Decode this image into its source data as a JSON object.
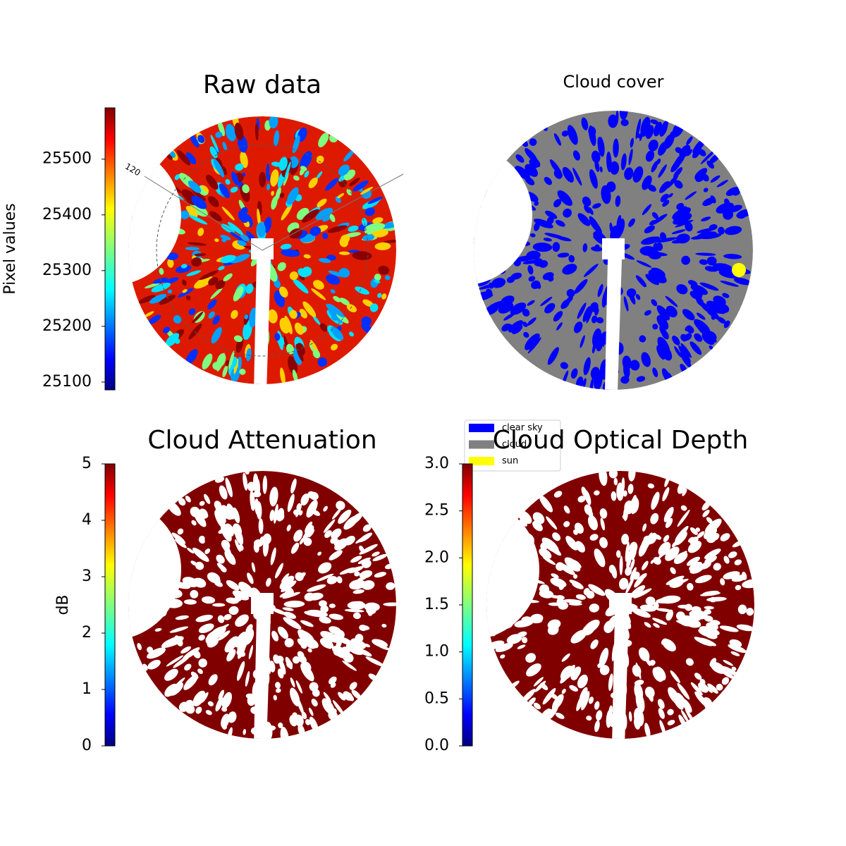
{
  "chart_data": [
    {
      "type": "image",
      "title": "Raw data",
      "ylabel": "Pixel values",
      "colormap": "jet",
      "ylim": [
        25086,
        25592
      ],
      "yticks": [
        25100,
        25200,
        25300,
        25400,
        25500
      ],
      "annotation": "120"
    },
    {
      "type": "image",
      "title": "Cloud cover",
      "legend": [
        {
          "name": "clear sky",
          "color": "#0000ff"
        },
        {
          "name": "cloud",
          "color": "#808080"
        },
        {
          "name": "sun",
          "color": "#ffff00"
        }
      ]
    },
    {
      "type": "image",
      "title": "Cloud Attenuation",
      "ylabel": "dB",
      "colormap": "jet",
      "ylim": [
        0,
        5
      ],
      "yticks": [
        0,
        1,
        2,
        3,
        4,
        5
      ]
    },
    {
      "type": "image",
      "title": "Cloud Optical Depth",
      "colormap": "jet",
      "ylim": [
        0,
        3
      ],
      "yticks": [
        {
          "value": 0,
          "label": "0.0"
        },
        {
          "value": 0.5,
          "label": "0.5"
        },
        {
          "value": 1,
          "label": "1.0"
        },
        {
          "value": 1.5,
          "label": "1.5"
        },
        {
          "value": 2,
          "label": "2.0"
        },
        {
          "value": 2.5,
          "label": "2.5"
        },
        {
          "value": 3,
          "label": "3.0"
        }
      ]
    }
  ]
}
